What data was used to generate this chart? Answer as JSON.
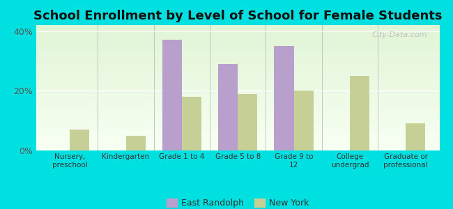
{
  "title": "School Enrollment by Level of School for Female Students",
  "categories": [
    "Nursery,\npreschool",
    "Kindergarten",
    "Grade 1 to 4",
    "Grade 5 to 8",
    "Grade 9 to\n12",
    "College\nundergrad",
    "Graduate or\nprofessional"
  ],
  "east_randolph": [
    0,
    0,
    37,
    29,
    35,
    0,
    0
  ],
  "new_york": [
    7,
    5,
    18,
    19,
    20,
    25,
    9
  ],
  "er_color": "#b89fcc",
  "ny_color": "#c5cf96",
  "ylim": [
    0,
    42
  ],
  "yticks": [
    0,
    20,
    40
  ],
  "ytick_labels": [
    "0%",
    "20%",
    "40%"
  ],
  "background_color": "#00e0e0",
  "plot_bg_color": "#e8f5e2",
  "legend_er": "East Randolph",
  "legend_ny": "New York",
  "bar_width": 0.35,
  "title_fontsize": 13,
  "watermark": "City-Data.com"
}
